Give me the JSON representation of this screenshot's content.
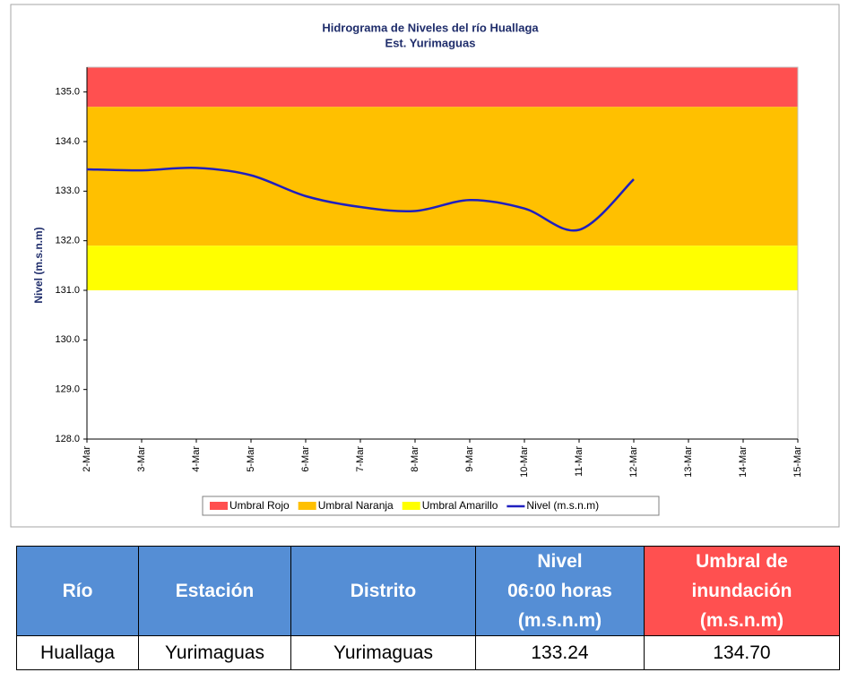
{
  "chart_data": {
    "type": "line",
    "title": "Hidrograma de Niveles del río Huallaga",
    "subtitle": "Est. Yurimaguas",
    "y_label": "Nivel (m.s.n.m)",
    "categories": [
      "2-Mar",
      "3-Mar",
      "4-Mar",
      "5-Mar",
      "6-Mar",
      "7-Mar",
      "8-Mar",
      "9-Mar",
      "10-Mar",
      "11-Mar",
      "12-Mar",
      "13-Mar",
      "14-Mar",
      "15-Mar"
    ],
    "ylim": [
      128,
      135.5
    ],
    "yticks": [
      {
        "value": 128,
        "label": "128.0"
      },
      {
        "value": 129,
        "label": "129.0"
      },
      {
        "value": 130,
        "label": "130.0"
      },
      {
        "value": 131,
        "label": "131.0"
      },
      {
        "value": 132,
        "label": "132.0"
      },
      {
        "value": 133,
        "label": "133.0"
      },
      {
        "value": 134,
        "label": "134.0"
      },
      {
        "value": 135,
        "label": "135.0"
      }
    ],
    "bands": [
      {
        "name": "Umbral Rojo",
        "color": "#ff5050",
        "range": [
          134.7,
          135.5
        ]
      },
      {
        "name": "Umbral Naranja",
        "color": "#ffc000",
        "range": [
          131.9,
          134.7
        ]
      },
      {
        "name": "Umbral Amarillo",
        "color": "#ffff00",
        "range": [
          131.0,
          131.9
        ]
      }
    ],
    "series": [
      {
        "name": "Nivel (m.s.n.m)",
        "color": "#1f1fbf",
        "values": [
          133.44,
          133.42,
          133.47,
          133.32,
          132.9,
          132.68,
          132.6,
          132.82,
          132.65,
          132.22,
          133.24,
          null,
          null,
          null
        ]
      }
    ]
  },
  "table": {
    "header": [
      "Río",
      "Estación",
      "Distrito",
      "Nivel\n06:00 horas\n(m.s.n.m)",
      "Umbral de\ninundación\n(m.s.n.m)"
    ],
    "rows": [
      [
        "Huallaga",
        "Yurimaguas",
        "Yurimaguas",
        "133.24",
        "134.70"
      ]
    ]
  }
}
